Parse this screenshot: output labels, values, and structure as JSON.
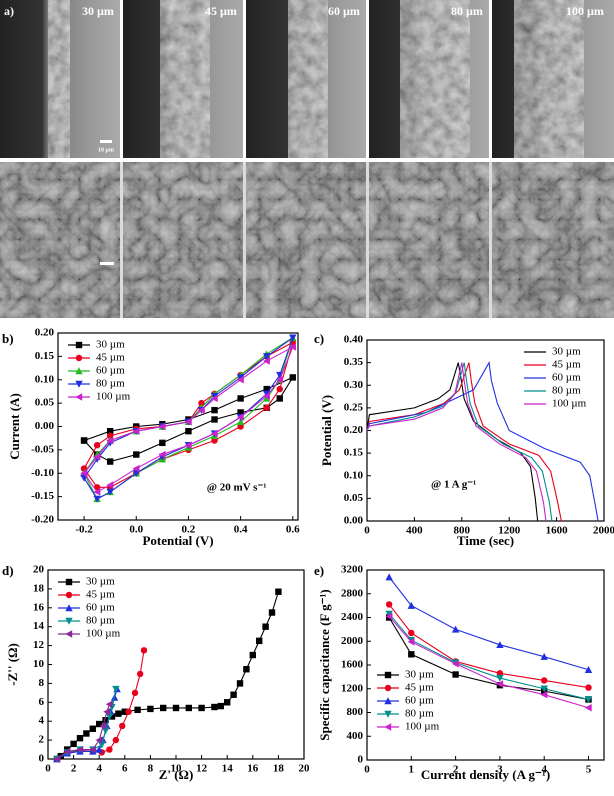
{
  "figure_a": {
    "panel_label": "a)",
    "image_labels": [
      "30 µm",
      "45 µm",
      "60 µm",
      "80 µm",
      "100 µm"
    ],
    "scale_bar_label": "10 µm"
  },
  "chart_data": [
    {
      "type": "line",
      "panel_label": "b)",
      "x_label": "Potential (V)",
      "y_label": "Current (A)",
      "annotation": "@ 20 mV s⁻¹",
      "xlim": [
        -0.3,
        0.62
      ],
      "xticks": [
        -0.2,
        {
          "value": 0,
          "label": "0.0"
        },
        0.2,
        0.4,
        0.6
      ],
      "ylim": [
        -0.2,
        0.2
      ],
      "yticks": [
        {
          "value": -0.2,
          "label": "-0.20"
        },
        -0.15,
        {
          "value": -0.1,
          "label": "-0.10"
        },
        -0.05,
        {
          "value": 0,
          "label": "0.00"
        },
        0.05,
        {
          "value": 0.1,
          "label": "0.10"
        },
        0.15,
        {
          "value": 0.2,
          "label": "0.20"
        }
      ],
      "legend": "upper left",
      "series": [
        {
          "name": "30 µm",
          "color": "#000000",
          "marker": "square",
          "x": [
            -0.2,
            -0.1,
            0,
            0.1,
            0.2,
            0.3,
            0.4,
            0.5,
            0.6,
            0.55,
            0.5,
            0.4,
            0.3,
            0.2,
            0.1,
            0,
            -0.1,
            -0.15,
            -0.2
          ],
          "values": [
            -0.03,
            -0.01,
            0,
            0.005,
            0.015,
            0.035,
            0.06,
            0.08,
            0.105,
            0.06,
            0.04,
            0.03,
            0.015,
            -0.01,
            -0.035,
            -0.06,
            -0.075,
            -0.06,
            -0.03
          ]
        },
        {
          "name": "45 µm",
          "color": "#e8001c",
          "marker": "circle",
          "x": [
            -0.2,
            -0.15,
            -0.1,
            0,
            0.1,
            0.2,
            0.25,
            0.3,
            0.4,
            0.5,
            0.6,
            0.55,
            0.5,
            0.4,
            0.3,
            0.2,
            0.1,
            0,
            -0.1,
            -0.15,
            -0.2
          ],
          "values": [
            -0.09,
            -0.04,
            -0.02,
            -0.005,
            0,
            0.01,
            0.05,
            0.07,
            0.11,
            0.15,
            0.18,
            0.08,
            0.04,
            0,
            -0.03,
            -0.05,
            -0.07,
            -0.1,
            -0.13,
            -0.13,
            -0.09
          ]
        },
        {
          "name": "60 µm",
          "color": "#22bb22",
          "marker": "triangle-up",
          "x": [
            -0.2,
            -0.15,
            -0.1,
            0,
            0.1,
            0.2,
            0.25,
            0.3,
            0.4,
            0.5,
            0.6,
            0.55,
            0.5,
            0.4,
            0.3,
            0.2,
            0.1,
            0,
            -0.1,
            -0.15,
            -0.2
          ],
          "values": [
            -0.1,
            -0.06,
            -0.03,
            -0.01,
            0,
            0.01,
            0.04,
            0.07,
            0.11,
            0.155,
            0.19,
            0.1,
            0.06,
            0.01,
            -0.02,
            -0.045,
            -0.07,
            -0.1,
            -0.14,
            -0.155,
            -0.1
          ]
        },
        {
          "name": "80 µm",
          "color": "#2030e0",
          "marker": "triangle-down",
          "x": [
            -0.2,
            -0.15,
            -0.1,
            0,
            0.1,
            0.2,
            0.25,
            0.3,
            0.4,
            0.5,
            0.6,
            0.55,
            0.5,
            0.4,
            0.3,
            0.2,
            0.1,
            0,
            -0.1,
            -0.15,
            -0.2
          ],
          "values": [
            -0.11,
            -0.07,
            -0.035,
            -0.01,
            0,
            0.01,
            0.035,
            0.065,
            0.105,
            0.15,
            0.19,
            0.11,
            0.07,
            0.02,
            -0.015,
            -0.04,
            -0.065,
            -0.1,
            -0.14,
            -0.155,
            -0.11
          ]
        },
        {
          "name": "100 µm",
          "color": "#cc22cc",
          "marker": "triangle-left",
          "x": [
            -0.2,
            -0.15,
            -0.1,
            0,
            0.1,
            0.2,
            0.25,
            0.3,
            0.4,
            0.5,
            0.6,
            0.55,
            0.5,
            0.4,
            0.3,
            0.2,
            0.1,
            0,
            -0.1,
            -0.15,
            -0.2
          ],
          "values": [
            -0.1,
            -0.065,
            -0.03,
            -0.01,
            0,
            0.01,
            0.035,
            0.06,
            0.1,
            0.14,
            0.17,
            0.1,
            0.065,
            0.02,
            -0.015,
            -0.04,
            -0.06,
            -0.09,
            -0.125,
            -0.14,
            -0.1
          ]
        }
      ]
    },
    {
      "type": "line",
      "panel_label": "c)",
      "x_label": "Time (sec)",
      "y_label": "Potential (V)",
      "annotation": "@ 1 A g⁻¹",
      "xlim": [
        0,
        2000
      ],
      "xticks": [
        0,
        400,
        800,
        1200,
        1600,
        2000
      ],
      "ylim": [
        0,
        0.4
      ],
      "yticks": [
        {
          "value": 0,
          "label": "0.00"
        },
        0.05,
        {
          "value": 0.1,
          "label": "0.10"
        },
        0.15,
        {
          "value": 0.2,
          "label": "0.20"
        },
        0.25,
        {
          "value": 0.3,
          "label": "0.30"
        },
        0.35,
        {
          "value": 0.4,
          "label": "0.40"
        }
      ],
      "legend": "upper right",
      "series": [
        {
          "name": "30 µm",
          "color": "#000000",
          "x": [
            0,
            20,
            400,
            600,
            700,
            770,
            790,
            820,
            900,
            1100,
            1300,
            1380,
            1420,
            1440
          ],
          "values": [
            0.2,
            0.235,
            0.25,
            0.27,
            0.29,
            0.35,
            0.32,
            0.27,
            0.22,
            0.18,
            0.15,
            0.12,
            0.05,
            0
          ]
        },
        {
          "name": "45 µm",
          "color": "#e8001c",
          "x": [
            0,
            20,
            400,
            650,
            780,
            860,
            880,
            910,
            980,
            1200,
            1450,
            1550,
            1610,
            1640
          ],
          "values": [
            0.2,
            0.22,
            0.235,
            0.26,
            0.29,
            0.35,
            0.31,
            0.26,
            0.21,
            0.17,
            0.145,
            0.11,
            0.04,
            0
          ]
        },
        {
          "name": "60 µm",
          "color": "#2030e0",
          "x": [
            0,
            20,
            500,
            900,
            1030,
            1050,
            1100,
            1200,
            1500,
            1800,
            1880,
            1930,
            1950
          ],
          "values": [
            0.2,
            0.215,
            0.24,
            0.29,
            0.35,
            0.31,
            0.26,
            0.2,
            0.16,
            0.13,
            0.1,
            0.03,
            0
          ]
        },
        {
          "name": "80 µm",
          "color": "#009090",
          "x": [
            0,
            20,
            400,
            650,
            750,
            820,
            840,
            870,
            940,
            1150,
            1390,
            1480,
            1540,
            1560
          ],
          "values": [
            0.2,
            0.21,
            0.23,
            0.255,
            0.285,
            0.35,
            0.31,
            0.26,
            0.21,
            0.17,
            0.14,
            0.11,
            0.04,
            0
          ]
        },
        {
          "name": "100 µm",
          "color": "#cc22cc",
          "x": [
            0,
            20,
            400,
            640,
            740,
            800,
            820,
            850,
            920,
            1120,
            1340,
            1430,
            1490,
            1510
          ],
          "values": [
            0.2,
            0.21,
            0.225,
            0.25,
            0.28,
            0.35,
            0.31,
            0.26,
            0.21,
            0.17,
            0.14,
            0.11,
            0.04,
            0
          ]
        }
      ]
    },
    {
      "type": "line",
      "panel_label": "d)",
      "x_label": "Z' (Ω)",
      "y_label": "-Z'' (Ω)",
      "xlim": [
        0,
        20
      ],
      "xticks": [
        0,
        2,
        4,
        6,
        8,
        10,
        12,
        14,
        16,
        18,
        20
      ],
      "ylim": [
        0,
        20
      ],
      "yticks": [
        0,
        2,
        4,
        6,
        8,
        10,
        12,
        14,
        16,
        18,
        20
      ],
      "legend": "upper left",
      "series": [
        {
          "name": "30 µm",
          "color": "#000000",
          "marker": "square",
          "x": [
            0.7,
            1,
            1.5,
            2,
            2.5,
            3,
            3.5,
            4,
            4.5,
            5,
            5.5,
            6,
            7,
            8,
            9,
            10,
            11,
            12,
            13,
            13.5,
            14,
            14.5,
            15,
            15.5,
            16,
            16.5,
            17,
            17.5,
            18
          ],
          "values": [
            0,
            0.3,
            1,
            1.6,
            2.2,
            2.7,
            3.2,
            3.7,
            4.1,
            4.5,
            4.8,
            5,
            5.2,
            5.3,
            5.4,
            5.4,
            5.4,
            5.4,
            5.5,
            5.6,
            6,
            6.8,
            8,
            9.5,
            11,
            12.5,
            14,
            15.5,
            17.7
          ]
        },
        {
          "name": "45 µm",
          "color": "#e8001c",
          "marker": "circle",
          "x": [
            0.7,
            1.5,
            2.5,
            3.5,
            4.2,
            4.8,
            5.3,
            5.8,
            6.3,
            6.8,
            7.2,
            7.5
          ],
          "values": [
            0,
            0.6,
            0.9,
            0.8,
            0.7,
            1,
            2,
            3.5,
            5,
            7,
            9,
            11.5
          ]
        },
        {
          "name": "60 µm",
          "color": "#2030e0",
          "marker": "triangle-up",
          "x": [
            0.7,
            1.5,
            2.5,
            3.5,
            4,
            4.3,
            4.6,
            4.9,
            5.2,
            5.4
          ],
          "values": [
            0,
            0.6,
            0.8,
            0.8,
            1,
            2,
            3.5,
            5,
            6.5,
            7.4
          ]
        },
        {
          "name": "80 µm",
          "color": "#009090",
          "marker": "triangle-down",
          "x": [
            0.7,
            1.5,
            2.5,
            3.5,
            4.2,
            4.5,
            4.8,
            5,
            5.3
          ],
          "values": [
            0,
            0.7,
            1,
            1,
            1.5,
            3,
            4.5,
            5.5,
            7.4
          ]
        },
        {
          "name": "100 µm",
          "color": "#8a2a9a",
          "marker": "triangle-left",
          "x": [
            0.7,
            1.5,
            2.5,
            3.5,
            4,
            4.3,
            4.6,
            4.8
          ],
          "values": [
            0,
            0.8,
            1,
            1,
            2,
            3.5,
            5,
            5.8
          ]
        }
      ]
    },
    {
      "type": "line",
      "panel_label": "e)",
      "x_label": "Current density (A g⁻¹)",
      "y_label": "Specific capacitance (F g⁻¹)",
      "xlim": [
        0,
        5.35
      ],
      "xticks": [
        0,
        1,
        2,
        3,
        4,
        5
      ],
      "ylim": [
        0,
        3200
      ],
      "yticks": [
        0,
        400,
        800,
        1200,
        1600,
        2000,
        2400,
        2800,
        3200
      ],
      "legend": "lower left",
      "series": [
        {
          "name": "30 µm",
          "color": "#000000",
          "marker": "square",
          "x": [
            0.5,
            1,
            2,
            3,
            4,
            5
          ],
          "values": [
            2400,
            1780,
            1440,
            1260,
            1160,
            1020
          ]
        },
        {
          "name": "45 µm",
          "color": "#e8001c",
          "marker": "circle",
          "x": [
            0.5,
            1,
            2,
            3,
            4,
            5
          ],
          "values": [
            2620,
            2140,
            1660,
            1460,
            1340,
            1220
          ]
        },
        {
          "name": "60 µm",
          "color": "#2030e0",
          "marker": "triangle-up",
          "x": [
            0.5,
            1,
            2,
            3,
            4,
            5
          ],
          "values": [
            3080,
            2600,
            2200,
            1940,
            1740,
            1520
          ]
        },
        {
          "name": "80 µm",
          "color": "#009090",
          "marker": "triangle-down",
          "x": [
            0.5,
            1,
            2,
            3,
            4,
            5
          ],
          "values": [
            2460,
            2020,
            1640,
            1380,
            1200,
            1020
          ]
        },
        {
          "name": "100 µm",
          "color": "#cc22cc",
          "marker": "triangle-left",
          "x": [
            0.5,
            1,
            2,
            3,
            4,
            5
          ],
          "values": [
            2420,
            1990,
            1620,
            1280,
            1100,
            880
          ]
        }
      ]
    }
  ]
}
